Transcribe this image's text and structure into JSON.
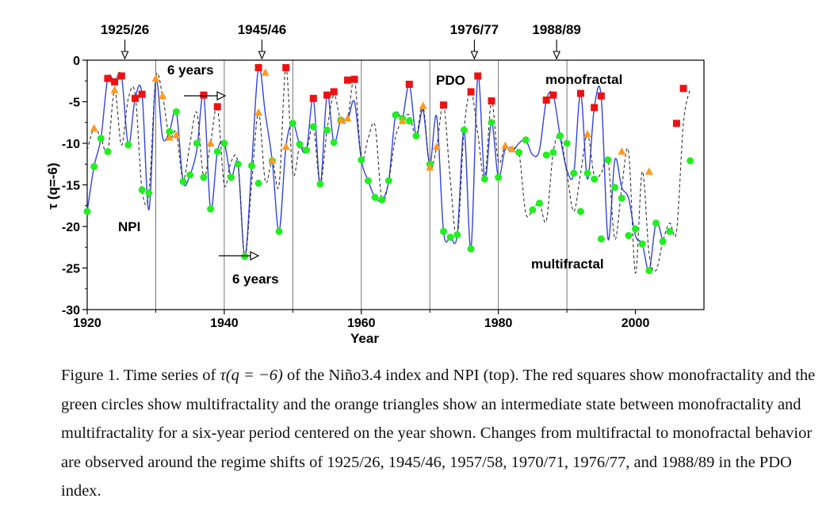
{
  "chart_data": {
    "type": "scatter",
    "xlabel": "Year",
    "ylabel": "τ (q=-6)",
    "xlim": [
      1920,
      2010
    ],
    "ylim": [
      -30,
      0
    ],
    "x_ticks": [
      "1920",
      "1940",
      "1960",
      "1980",
      "2000"
    ],
    "y_ticks": [
      "0",
      "-5",
      "-10",
      "-15",
      "-20",
      "-25",
      "-30"
    ],
    "regime_shift_lines": [
      1930,
      1940,
      1950,
      1960,
      1970,
      1980,
      1990
    ],
    "top_markers": [
      "1925/26",
      "1945/46",
      "1976/77",
      "1988/89"
    ],
    "labels": {
      "npi": "NPI",
      "pdo": "PDO",
      "monofractal": "monofractal",
      "multifractal": "multifractal",
      "six_years_top": "6 years",
      "six_years_bottom": "6 years"
    },
    "colors": {
      "npi_line": "#3344dd",
      "pdo_line": "#333333",
      "red": "#ee1111",
      "green": "#22ee22",
      "orange": "#ff9922"
    },
    "series": [
      {
        "role": "npi_line",
        "style": "solid-blue",
        "x": [
          1920,
          1921,
          1922,
          1923,
          1924,
          1925,
          1926,
          1927,
          1928,
          1929,
          1930,
          1931,
          1932,
          1933,
          1934,
          1935,
          1936,
          1937,
          1938,
          1939,
          1940,
          1941,
          1942,
          1943,
          1944,
          1945,
          1946,
          1947,
          1948,
          1949,
          1950,
          1951,
          1952,
          1953,
          1954,
          1955,
          1956,
          1957,
          1958,
          1959,
          1960,
          1961,
          1962,
          1963,
          1964,
          1965,
          1966,
          1967,
          1968,
          1969,
          1970,
          1971,
          1972,
          1973,
          1974,
          1975,
          1976,
          1977,
          1978,
          1979,
          1980,
          1981,
          1982,
          1983,
          1984,
          1985,
          1986,
          1987,
          1988,
          1989,
          1990,
          1991,
          1992,
          1993,
          1994,
          1995,
          1996,
          1997,
          1998,
          1999,
          2000,
          2001,
          2002,
          2003,
          2004
        ],
        "y": [
          -18.2,
          -12.8,
          -9.4,
          -2.2,
          -2.6,
          -1.9,
          -10.2,
          -4.6,
          -4.1,
          -18.0,
          -2.5,
          -9.3,
          -8.6,
          -6.2,
          -14.6,
          -13.8,
          -10.8,
          -4.2,
          -17.9,
          -11.0,
          -10.0,
          -14.1,
          -12.5,
          -23.6,
          -12.7,
          -0.9,
          -6.5,
          -12.1,
          -20.6,
          -10.4,
          -7.6,
          -10.1,
          -10.8,
          -4.6,
          -14.9,
          -4.2,
          -9.9,
          -7.2,
          -7.2,
          -5.0,
          -12.0,
          -14.5,
          -16.5,
          -16.8,
          -14.5,
          -6.6,
          -7.0,
          -2.9,
          -9.1,
          -6.0,
          -12.5,
          -6.8,
          -20.6,
          -21.3,
          -21.0,
          -8.4,
          -22.7,
          -1.9,
          -14.3,
          -7.5,
          -14.1,
          -10.7,
          -11.0,
          -10.0,
          -9.6,
          -11.4,
          -10.8,
          -4.8,
          -4.2,
          -9.1,
          -13.2,
          -13.6,
          -4.0,
          -14.3,
          -5.7,
          -4.3,
          -21.5,
          -12.0,
          -15.3,
          -16.6,
          -21.1,
          -22.1,
          -25.3,
          -19.6,
          -21.8
        ]
      },
      {
        "role": "pdo_line",
        "style": "dashed-black",
        "x": [
          1920,
          1921,
          1922,
          1923,
          1924,
          1925,
          1926,
          1927,
          1928,
          1929,
          1930,
          1931,
          1932,
          1933,
          1934,
          1935,
          1936,
          1937,
          1938,
          1939,
          1940,
          1941,
          1942,
          1943,
          1944,
          1945,
          1946,
          1947,
          1948,
          1949,
          1950,
          1951,
          1952,
          1953,
          1954,
          1955,
          1956,
          1957,
          1958,
          1959,
          1960,
          1961,
          1962,
          1963,
          1964,
          1965,
          1966,
          1967,
          1968,
          1969,
          1970,
          1971,
          1972,
          1973,
          1974,
          1975,
          1976,
          1977,
          1978,
          1979,
          1980,
          1981,
          1982,
          1983,
          1984,
          1985,
          1986,
          1987,
          1988,
          1989,
          1990,
          1991,
          1992,
          1993,
          1994,
          1995,
          1996,
          1997,
          1998,
          1999,
          2000,
          2001,
          2002,
          2003,
          2004,
          2005,
          2006,
          2007,
          2008
        ],
        "y": [
          -10.8,
          -8.2,
          -9.4,
          -11.0,
          -3.6,
          -10.2,
          -4.6,
          -4.1,
          -15.6,
          -16.0,
          -2.2,
          -4.3,
          -9.3,
          -8.7,
          -14.4,
          -10.0,
          -6.3,
          -14.1,
          -10.0,
          -5.6,
          -15.0,
          -12.2,
          -12.4,
          -23.6,
          -14.8,
          -6.3,
          -14.6,
          -12.1,
          -15.0,
          -0.9,
          -13.6,
          -10.4,
          -10.8,
          -8.0,
          -14.9,
          -8.4,
          -4.2,
          -7.2,
          -7.0,
          -2.3,
          -11.8,
          -9.4,
          -7.9,
          -16.8,
          -14.5,
          -9.2,
          -7.3,
          -6.6,
          -9.1,
          -5.5,
          -12.9,
          -10.4,
          -5.4,
          -14.6,
          -21.3,
          -8.3,
          -3.8,
          -8.8,
          -14.3,
          -4.9,
          -12.2,
          -10.3,
          -10.7,
          -11.1,
          -18.4,
          -18.0,
          -17.2,
          -19.3,
          -11.1,
          -9.1,
          -13.6,
          -18.2,
          -13.6,
          -8.9,
          -13.9,
          -13.6,
          -12.0,
          -21.5,
          -15.3,
          -11.0,
          -25.6,
          -13.4,
          -23.3,
          -25.3,
          -21.8,
          -19.6,
          -20.6,
          -7.6,
          -3.4
        ]
      },
      {
        "role": "monofractal_points",
        "marker": "red-square",
        "x": [
          1923,
          1924,
          1925,
          1927,
          1928,
          1937,
          1939,
          1945,
          1949,
          1953,
          1955,
          1956,
          1958,
          1959,
          1967,
          1972,
          1976,
          1977,
          1979,
          1987,
          1988,
          1992,
          1994,
          1995,
          2006,
          2007
        ],
        "y": [
          -2.2,
          -2.6,
          -1.9,
          -4.6,
          -4.1,
          -4.2,
          -5.6,
          -0.9,
          -0.9,
          -4.6,
          -4.2,
          -3.8,
          -2.4,
          -2.3,
          -2.9,
          -5.4,
          -3.8,
          -1.9,
          -4.9,
          -4.8,
          -4.2,
          -4.0,
          -5.7,
          -4.3,
          -7.6,
          -3.4
        ]
      },
      {
        "role": "multifractal_points",
        "marker": "green-circle",
        "x": [
          1920,
          1921,
          1922,
          1923,
          1926,
          1928,
          1929,
          1932,
          1933,
          1934,
          1935,
          1936,
          1937,
          1938,
          1939,
          1940,
          1941,
          1942,
          1943,
          1944,
          1945,
          1947,
          1948,
          1950,
          1951,
          1952,
          1953,
          1954,
          1955,
          1956,
          1957,
          1960,
          1961,
          1962,
          1963,
          1964,
          1965,
          1966,
          1967,
          1968,
          1970,
          1972,
          1973,
          1974,
          1975,
          1976,
          1978,
          1979,
          1980,
          1983,
          1984,
          1985,
          1986,
          1987,
          1988,
          1989,
          1990,
          1991,
          1992,
          1993,
          1994,
          1995,
          1996,
          1997,
          1998,
          1999,
          2000,
          2001,
          2002,
          2003,
          2004,
          2005,
          2008
        ],
        "y": [
          -18.2,
          -12.8,
          -9.4,
          -11.0,
          -10.2,
          -15.6,
          -16.0,
          -8.6,
          -6.2,
          -14.6,
          -13.8,
          -10.0,
          -14.1,
          -17.9,
          -11.0,
          -10.0,
          -14.1,
          -12.5,
          -23.6,
          -12.7,
          -14.8,
          -12.1,
          -20.6,
          -7.6,
          -10.1,
          -10.8,
          -8.0,
          -14.9,
          -8.4,
          -9.9,
          -7.2,
          -12.0,
          -14.5,
          -16.5,
          -16.8,
          -14.5,
          -6.6,
          -7.0,
          -7.3,
          -9.1,
          -12.5,
          -20.6,
          -21.3,
          -21.0,
          -8.4,
          -22.7,
          -14.3,
          -7.5,
          -14.1,
          -11.1,
          -9.6,
          -18.0,
          -17.2,
          -11.4,
          -11.1,
          -9.1,
          -10.0,
          -13.6,
          -18.2,
          -13.6,
          -14.3,
          -21.5,
          -12.0,
          -15.3,
          -16.6,
          -21.1,
          -20.3,
          -22.1,
          -25.3,
          -19.6,
          -21.8,
          -20.6,
          -12.1
        ]
      },
      {
        "role": "intermediate_points",
        "marker": "orange-triangle",
        "x": [
          1921,
          1924,
          1930,
          1931,
          1932,
          1933,
          1938,
          1945,
          1946,
          1947,
          1949,
          1957,
          1958,
          1966,
          1969,
          1970,
          1971,
          1981,
          1982,
          1993,
          1998,
          2002
        ],
        "y": [
          -8.2,
          -3.6,
          -2.2,
          -4.3,
          -9.3,
          -9.0,
          -10.0,
          -6.3,
          -1.5,
          -12.1,
          -10.4,
          -7.2,
          -7.0,
          -7.3,
          -5.5,
          -12.9,
          -10.4,
          -10.3,
          -10.7,
          -8.9,
          -11.0,
          -13.4
        ]
      }
    ]
  },
  "caption": {
    "lead": "Figure 1. Time series of ",
    "math": "τ(q = −6)",
    "rest": " of the Niño3.4 index and NPI (top).    The red squares show monofractality and the green circles show multifractality and the orange triangles show an intermediate state between monofractality and multifractality for a six-year period centered on the year shown.    Changes from multifractal to monofractal behavior are observed around the regime shifts of 1925/26, 1945/46, 1957/58, 1970/71, 1976/77, and 1988/89 in the PDO index."
  }
}
